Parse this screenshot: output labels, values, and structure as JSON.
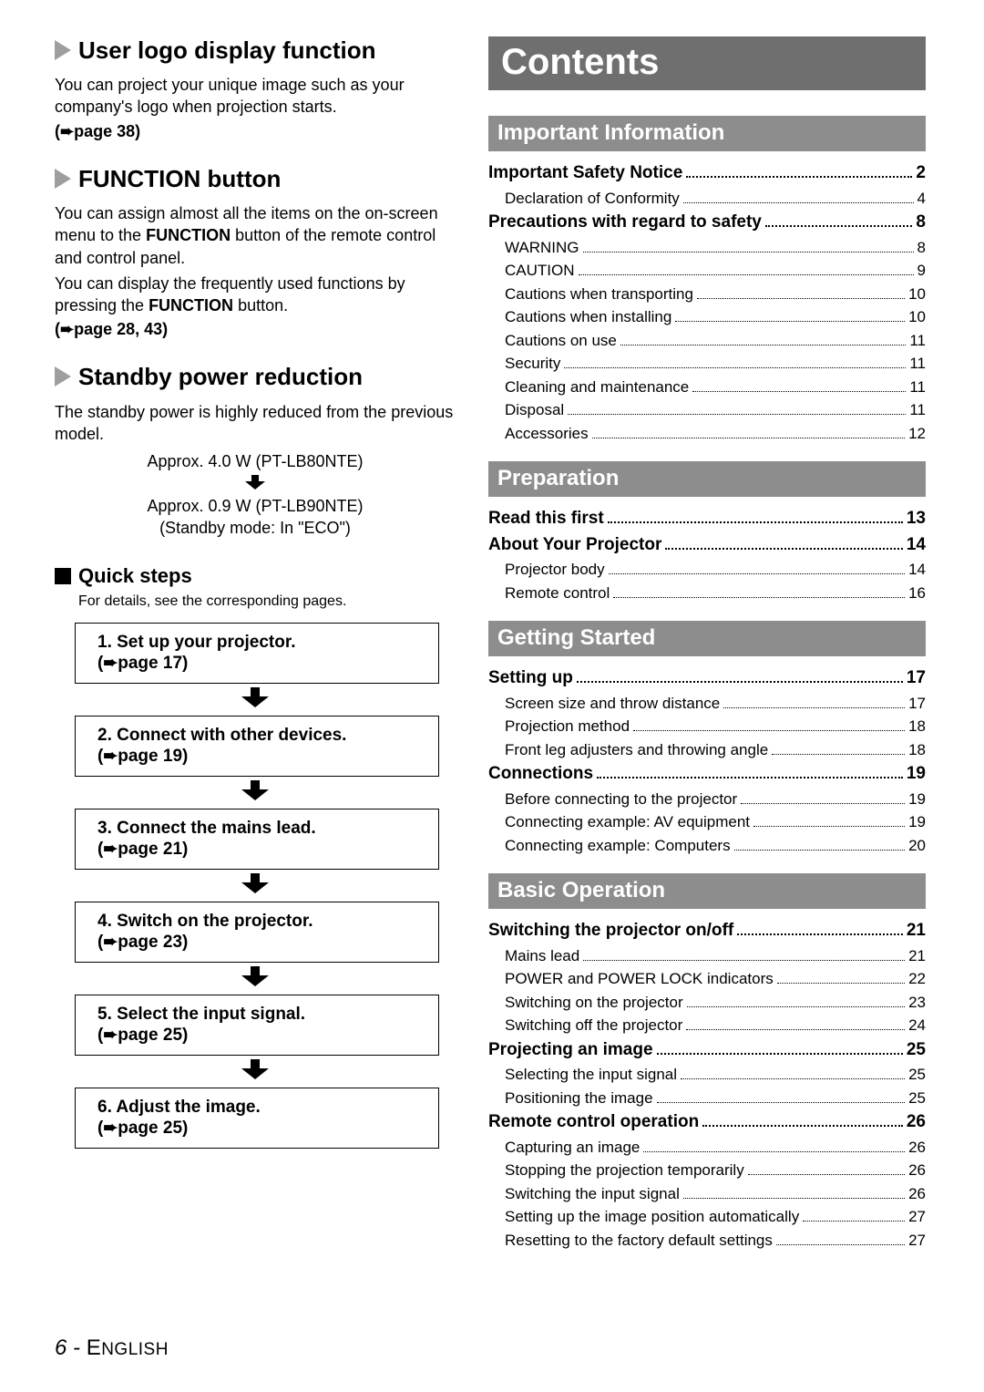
{
  "left": {
    "h1": "User logo display function",
    "p1": "You can project your unique image such as your company's logo when projection starts.",
    "p1_ref": "page 38)",
    "h2": "FUNCTION button",
    "p2a": "You can assign almost all the items on the on-screen menu to the ",
    "p2b": "FUNCTION",
    "p2c": " button of the remote control and control panel.",
    "p2d": "You can display the frequently used functions by pressing the ",
    "p2e": "FUNCTION",
    "p2f": " button.",
    "p2_ref": "page 28, 43)",
    "h3": "Standby power reduction",
    "p3": "The standby power is highly reduced from the previous model.",
    "s1": "Approx. 4.0 W (PT-LB80NTE)",
    "s2": "Approx. 0.9 W (PT-LB90NTE)",
    "s3": "(Standby mode: In \"ECO\")",
    "qs_title": "Quick steps",
    "qs_sub": "For details, see the corresponding pages.",
    "steps": [
      {
        "n": "1.",
        "t": "Set up your projector.",
        "r": "page 17)"
      },
      {
        "n": "2.",
        "t": "Connect with other devices.",
        "r": "page 19)"
      },
      {
        "n": "3.",
        "t": "Connect the mains lead.",
        "r": "page 21)"
      },
      {
        "n": "4.",
        "t": "Switch on the projector.",
        "r": "page 23)"
      },
      {
        "n": "5.",
        "t": "Select the input signal.",
        "r": "page 25)"
      },
      {
        "n": "6.",
        "t": "Adjust the image.",
        "r": "page 25)"
      }
    ]
  },
  "right": {
    "title": "Contents",
    "sections": [
      {
        "name": "Important Information",
        "items": [
          {
            "type": "major",
            "label": "Important Safety Notice",
            "page": "2"
          },
          {
            "type": "minor",
            "label": "Declaration of Conformity",
            "page": "4"
          },
          {
            "type": "major",
            "label": "Precautions with regard to safety",
            "page": "8"
          },
          {
            "type": "minor",
            "label": "WARNING",
            "page": "8"
          },
          {
            "type": "minor",
            "label": "CAUTION",
            "page": "9"
          },
          {
            "type": "minor",
            "label": "Cautions when transporting",
            "page": "10"
          },
          {
            "type": "minor",
            "label": "Cautions when installing",
            "page": "10"
          },
          {
            "type": "minor",
            "label": "Cautions on use",
            "page": "11"
          },
          {
            "type": "minor",
            "label": "Security",
            "page": "11"
          },
          {
            "type": "minor",
            "label": "Cleaning and maintenance",
            "page": "11"
          },
          {
            "type": "minor",
            "label": "Disposal",
            "page": "11"
          },
          {
            "type": "minor",
            "label": "Accessories",
            "page": "12"
          }
        ]
      },
      {
        "name": "Preparation",
        "items": [
          {
            "type": "major",
            "label": "Read this first",
            "page": "13"
          },
          {
            "type": "major",
            "label": "About Your Projector",
            "page": "14"
          },
          {
            "type": "minor",
            "label": "Projector body",
            "page": "14"
          },
          {
            "type": "minor",
            "label": "Remote control",
            "page": "16"
          }
        ]
      },
      {
        "name": "Getting Started",
        "items": [
          {
            "type": "major",
            "label": "Setting up",
            "page": "17"
          },
          {
            "type": "minor",
            "label": "Screen size and throw distance",
            "page": "17"
          },
          {
            "type": "minor",
            "label": "Projection method",
            "page": "18"
          },
          {
            "type": "minor",
            "label": "Front leg adjusters and throwing angle",
            "page": "18"
          },
          {
            "type": "major",
            "label": "Connections",
            "page": "19"
          },
          {
            "type": "minor",
            "label": "Before connecting to the projector",
            "page": "19"
          },
          {
            "type": "minor",
            "label": "Connecting example: AV equipment",
            "page": "19"
          },
          {
            "type": "minor",
            "label": "Connecting example: Computers",
            "page": "20"
          }
        ]
      },
      {
        "name": "Basic Operation",
        "items": [
          {
            "type": "major",
            "label": "Switching the projector on/off",
            "page": "21"
          },
          {
            "type": "minor",
            "label": "Mains lead",
            "page": "21"
          },
          {
            "type": "minor",
            "label": "POWER and POWER LOCK indicators",
            "page": "22"
          },
          {
            "type": "minor",
            "label": "Switching on the projector",
            "page": "23"
          },
          {
            "type": "minor",
            "label": "Switching off the projector",
            "page": "24"
          },
          {
            "type": "major",
            "label": "Projecting an image",
            "page": "25"
          },
          {
            "type": "minor",
            "label": "Selecting the input signal",
            "page": "25"
          },
          {
            "type": "minor",
            "label": "Positioning the image",
            "page": "25"
          },
          {
            "type": "major",
            "label": "Remote control operation",
            "page": "26"
          },
          {
            "type": "minor",
            "label": "Capturing an image",
            "page": "26"
          },
          {
            "type": "minor",
            "label": "Stopping the projection temporarily",
            "page": "26"
          },
          {
            "type": "minor",
            "label": "Switching the input signal",
            "page": "26"
          },
          {
            "type": "minor",
            "label": "Setting up the image position automatically",
            "page": "27"
          },
          {
            "type": "minor",
            "label": "Resetting to the factory default settings",
            "page": "27"
          }
        ]
      }
    ]
  },
  "footer": {
    "page": "6",
    "sep": " - ",
    "lang": "English"
  },
  "glyphs": {
    "right_arrow": "➨",
    "down_arrow": "⬇"
  },
  "colors": {
    "contents_bg": "#6f6f6f",
    "section_bg": "#8d8d8d",
    "text": "#000000",
    "banner_text": "#ffffff",
    "triangle": "#9e9e9e"
  }
}
